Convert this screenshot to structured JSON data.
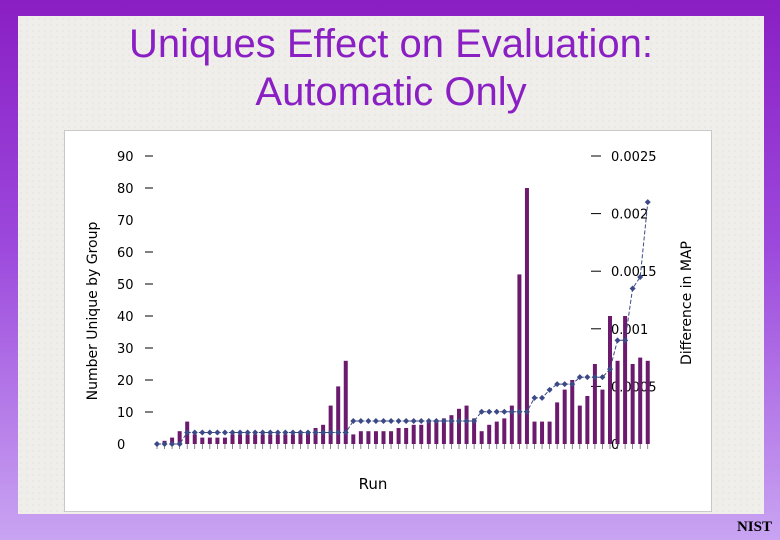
{
  "slide": {
    "title_line1": "Uniques Effect on Evaluation:",
    "title_line2": "Automatic Only",
    "footer": "NIST",
    "title_color": "#8a1fc4"
  },
  "chart_data": {
    "type": "bar",
    "xlabel": "Run",
    "ylabel": "Number Unique by Group",
    "y2label": "Difference in MAP",
    "ylim": [
      0,
      90
    ],
    "y2lim": [
      0,
      0.0025
    ],
    "yticks": [
      "0",
      "10",
      "20",
      "30",
      "40",
      "50",
      "60",
      "70",
      "80",
      "90"
    ],
    "y2ticks": [
      "0",
      "0.0005",
      "0.001",
      "0.0015",
      "0.002",
      "0.0025"
    ],
    "bar_color": "#6b1a6e",
    "line_color": "#3b4a86",
    "series": [
      {
        "type": "bar",
        "axis": "left",
        "values": [
          0,
          1,
          2,
          4,
          7,
          3,
          2,
          2,
          2,
          2,
          3,
          3,
          3,
          3,
          3,
          3,
          3,
          3,
          3,
          4,
          4,
          5,
          6,
          12,
          18,
          26,
          3,
          4,
          4,
          4,
          4,
          4,
          5,
          5,
          6,
          6,
          7,
          7,
          8,
          9,
          11,
          12,
          8,
          4,
          6,
          7,
          8,
          12,
          53,
          80,
          7,
          7,
          7,
          13,
          17,
          20,
          12,
          15,
          25,
          17,
          40,
          26,
          40,
          25,
          27,
          26
        ]
      },
      {
        "type": "line",
        "axis": "right",
        "values": [
          0,
          0,
          0,
          0,
          0.0001,
          0.0001,
          0.0001,
          0.0001,
          0.0001,
          0.0001,
          0.0001,
          0.0001,
          0.0001,
          0.0001,
          0.0001,
          0.0001,
          0.0001,
          0.0001,
          0.0001,
          0.0001,
          0.0001,
          0.0001,
          0.0001,
          0.0001,
          0.0001,
          0.0001,
          0.0002,
          0.0002,
          0.0002,
          0.0002,
          0.0002,
          0.0002,
          0.0002,
          0.0002,
          0.0002,
          0.0002,
          0.0002,
          0.0002,
          0.0002,
          0.0002,
          0.0002,
          0.0002,
          0.0002,
          0.00028,
          0.00028,
          0.00028,
          0.00028,
          0.00028,
          0.00028,
          0.00028,
          0.0004,
          0.0004,
          0.00047,
          0.00052,
          0.00052,
          0.00052,
          0.00058,
          0.00058,
          0.00058,
          0.00058,
          0.00065,
          0.0009,
          0.0009,
          0.00135,
          0.00145,
          0.0021
        ]
      }
    ]
  }
}
